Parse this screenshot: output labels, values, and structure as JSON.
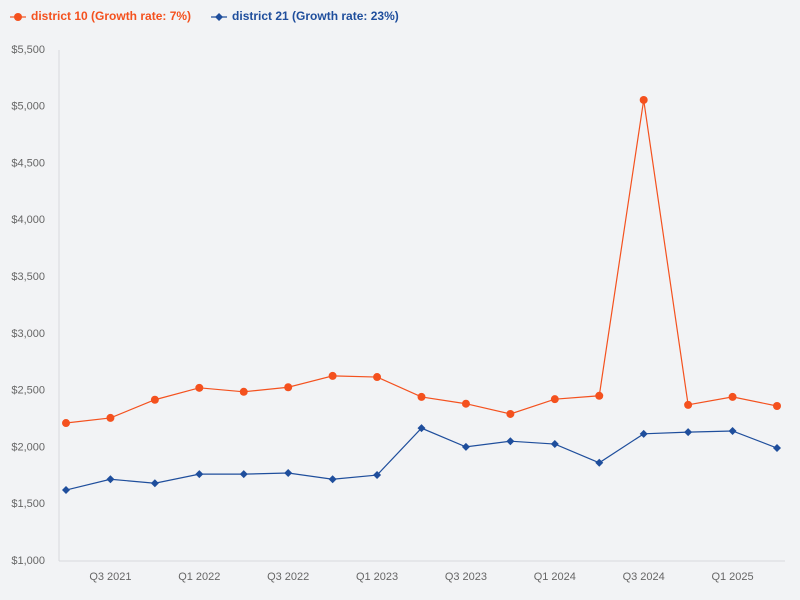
{
  "chart_data": {
    "type": "line",
    "categories": [
      null,
      "Q3 2021",
      null,
      "Q1 2022",
      null,
      "Q3 2022",
      null,
      "Q1 2023",
      null,
      "Q3 2023",
      null,
      "Q1 2024",
      null,
      "Q3 2024",
      null,
      "Q1 2025",
      null
    ],
    "series": [
      {
        "name": "district 10 (Growth rate: 7%)",
        "color": "#f4511e",
        "marker": "circle",
        "values": [
          2215,
          2260,
          2420,
          2525,
          2490,
          2530,
          2630,
          2620,
          2445,
          2385,
          2295,
          2425,
          2455,
          5060,
          2375,
          2445,
          2365
        ]
      },
      {
        "name": "district 21 (Growth rate: 23%)",
        "color": "#1f4e9c",
        "marker": "diamond",
        "values": [
          1625,
          1720,
          1685,
          1765,
          1765,
          1775,
          1720,
          1757,
          2170,
          2005,
          2055,
          2030,
          1865,
          2120,
          2135,
          2145,
          1995
        ]
      }
    ],
    "ylim": [
      1000,
      5500
    ],
    "yticks": [
      {
        "value": 1000,
        "label": "$1,000"
      },
      {
        "value": 1500,
        "label": "$1,500"
      },
      {
        "value": 2000,
        "label": "$2,000"
      },
      {
        "value": 2500,
        "label": "$2,500"
      },
      {
        "value": 3000,
        "label": "$3,000"
      },
      {
        "value": 3500,
        "label": "$3,500"
      },
      {
        "value": 4000,
        "label": "$4,000"
      },
      {
        "value": 4500,
        "label": "$4,500"
      },
      {
        "value": 5000,
        "label": "$5,000"
      },
      {
        "value": 5500,
        "label": "$5,500"
      }
    ],
    "grid": false,
    "legend": "top-left"
  }
}
